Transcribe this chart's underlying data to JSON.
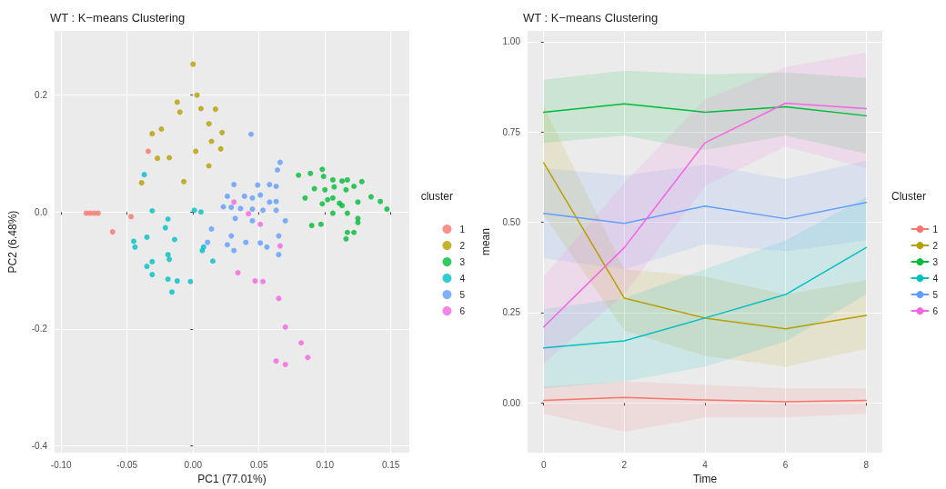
{
  "chart_data": [
    {
      "type": "scatter",
      "title": "WT : K−means Clustering",
      "xlabel": "PC1 (77.01%)",
      "ylabel": "PC2 (6.48%)",
      "legend_title": "cluster",
      "legend": "right",
      "grid": true,
      "marker": "circle",
      "xlim": [
        -0.105,
        0.164
      ],
      "ylim": [
        -0.412,
        0.31
      ],
      "xticks": [
        {
          "value": -0.1,
          "label": "-0.10"
        },
        {
          "value": -0.05,
          "label": "-0.05"
        },
        {
          "value": 0,
          "label": "0.00"
        },
        {
          "value": 0.05,
          "label": "0.05"
        },
        {
          "value": 0.1,
          "label": "0.10"
        },
        {
          "value": 0.15,
          "label": "0.15"
        }
      ],
      "yticks": [
        -0.4,
        -0.2,
        {
          "value": 0,
          "label": "0.0"
        },
        0.2
      ],
      "series": [
        {
          "name": "1",
          "color": "#f8766d",
          "x": [
            -0.081,
            -0.078,
            -0.075,
            -0.072,
            -0.047,
            -0.061,
            -0.034
          ],
          "values": [
            -0.002,
            -0.002,
            -0.002,
            -0.002,
            -0.008,
            -0.034,
            0.104
          ]
        },
        {
          "name": "2",
          "color": "#b79f00",
          "x": [
            0.0,
            0.003,
            -0.012,
            -0.01,
            0.006,
            0.017,
            0.012,
            0.022,
            -0.024,
            -0.031,
            0.014,
            0.021,
            0.002,
            -0.027,
            -0.018,
            0.012,
            -0.007,
            -0.039
          ],
          "values": [
            0.253,
            0.2,
            0.188,
            0.171,
            0.177,
            0.176,
            0.151,
            0.136,
            0.142,
            0.134,
            0.121,
            0.108,
            0.104,
            0.092,
            0.093,
            0.079,
            0.052,
            0.05
          ]
        },
        {
          "name": "3",
          "color": "#00ba38",
          "x": [
            0.098,
            0.089,
            0.099,
            0.08,
            0.106,
            0.113,
            0.117,
            0.128,
            0.122,
            0.116,
            0.1,
            0.107,
            0.092,
            0.085,
            0.102,
            0.106,
            0.111,
            0.098,
            0.113,
            0.125,
            0.135,
            0.142,
            0.147,
            0.117,
            0.106,
            0.125,
            0.125,
            0.097,
            0.09,
            0.117,
            0.122,
            0.116
          ],
          "values": [
            0.073,
            0.066,
            0.061,
            0.063,
            0.055,
            0.053,
            0.055,
            0.052,
            0.044,
            0.038,
            0.038,
            0.043,
            0.04,
            0.024,
            0.021,
            0.024,
            0.015,
            0.014,
            0.011,
            0.017,
            0.026,
            0.018,
            0.005,
            -0.002,
            -0.002,
            -0.011,
            -0.018,
            -0.021,
            -0.023,
            -0.035,
            -0.035,
            -0.046
          ]
        },
        {
          "name": "4",
          "color": "#00bfc4",
          "x": [
            -0.037,
            -0.031,
            0.001,
            0.006,
            -0.019,
            -0.021,
            -0.035,
            -0.045,
            -0.044,
            -0.014,
            0.008,
            0.007,
            -0.019,
            -0.018,
            -0.031,
            -0.035,
            -0.031,
            -0.019,
            -0.012,
            -0.002,
            -0.016,
            0.015
          ],
          "values": [
            0.064,
            0.002,
            0.003,
            0.0,
            -0.012,
            -0.027,
            -0.043,
            -0.05,
            -0.06,
            -0.047,
            -0.06,
            -0.066,
            -0.073,
            -0.081,
            -0.085,
            -0.093,
            -0.107,
            -0.115,
            -0.118,
            -0.119,
            -0.137,
            -0.084
          ]
        },
        {
          "name": "5",
          "color": "#619cff",
          "x": [
            0.044,
            0.066,
            0.064,
            0.031,
            0.049,
            0.058,
            0.063,
            0.026,
            0.039,
            0.045,
            0.051,
            0.058,
            0.063,
            0.023,
            0.029,
            0.036,
            0.045,
            0.053,
            0.063,
            0.032,
            0.045,
            0.07,
            0.014,
            0.011,
            0.029,
            0.026,
            0.04,
            0.051,
            0.056,
            0.065,
            0.065,
            0.031
          ],
          "values": [
            0.133,
            0.085,
            0.072,
            0.047,
            0.046,
            0.047,
            0.044,
            0.027,
            0.027,
            0.024,
            0.029,
            0.017,
            0.018,
            0.009,
            0.008,
            0.006,
            0.005,
            0.003,
            0.003,
            -0.011,
            -0.015,
            -0.015,
            -0.029,
            -0.052,
            -0.041,
            -0.056,
            -0.052,
            -0.053,
            -0.06,
            -0.041,
            -0.073,
            -0.066
          ]
        },
        {
          "name": "6",
          "color": "#f564e3",
          "x": [
            0.031,
            0.042,
            0.051,
            0.066,
            0.034,
            0.047,
            0.053,
            0.065,
            0.07,
            0.082,
            0.087,
            0.063,
            0.07
          ],
          "values": [
            0.017,
            -0.003,
            -0.021,
            -0.058,
            -0.104,
            -0.118,
            -0.119,
            -0.148,
            -0.197,
            -0.224,
            -0.249,
            -0.255,
            -0.261
          ]
        }
      ]
    },
    {
      "type": "line",
      "title": "WT : K−means Clustering",
      "xlabel": "Time",
      "ylabel": "mean",
      "legend_title": "Cluster",
      "legend": "right",
      "grid": true,
      "marker": "none",
      "line_style": "solid",
      "x": [
        0,
        2,
        4,
        6,
        8
      ],
      "xlim": [
        -0.4,
        8.4
      ],
      "ylim": [
        -0.138,
        1.03
      ],
      "xticks": [
        0,
        2,
        4,
        6,
        8
      ],
      "yticks": [
        {
          "value": 0,
          "label": "0.00"
        },
        {
          "value": 0.25,
          "label": "0.25"
        },
        {
          "value": 0.5,
          "label": "0.50"
        },
        {
          "value": 0.75,
          "label": "0.75"
        },
        {
          "value": 1,
          "label": "1.00"
        }
      ],
      "series": [
        {
          "name": "1",
          "color": "#f8766d",
          "values": [
            0.007,
            0.015,
            0.008,
            0.003,
            0.007
          ],
          "lower": [
            -0.03,
            -0.08,
            -0.04,
            -0.04,
            -0.03
          ],
          "upper": [
            0.045,
            0.06,
            0.05,
            0.04,
            0.04
          ]
        },
        {
          "name": "2",
          "color": "#b79f00",
          "values": [
            0.665,
            0.29,
            0.235,
            0.205,
            0.242
          ],
          "lower": [
            0.52,
            0.2,
            0.13,
            0.1,
            0.15
          ],
          "upper": [
            0.82,
            0.37,
            0.35,
            0.3,
            0.34
          ]
        },
        {
          "name": "3",
          "color": "#00ba38",
          "values": [
            0.805,
            0.828,
            0.805,
            0.82,
            0.795
          ],
          "lower": [
            0.72,
            0.74,
            0.7,
            0.74,
            0.69
          ],
          "upper": [
            0.895,
            0.92,
            0.91,
            0.915,
            0.9
          ]
        },
        {
          "name": "4",
          "color": "#00bfc4",
          "values": [
            0.152,
            0.172,
            0.235,
            0.3,
            0.43
          ],
          "lower": [
            0.04,
            0.06,
            0.1,
            0.17,
            0.3
          ],
          "upper": [
            0.26,
            0.29,
            0.37,
            0.45,
            0.57
          ]
        },
        {
          "name": "5",
          "color": "#619cff",
          "values": [
            0.525,
            0.497,
            0.545,
            0.51,
            0.555
          ],
          "lower": [
            0.4,
            0.37,
            0.44,
            0.42,
            0.45
          ],
          "upper": [
            0.65,
            0.63,
            0.66,
            0.62,
            0.67
          ]
        },
        {
          "name": "6",
          "color": "#f564e3",
          "values": [
            0.21,
            0.43,
            0.72,
            0.83,
            0.815
          ],
          "lower": [
            0.11,
            0.3,
            0.6,
            0.71,
            0.65
          ],
          "upper": [
            0.35,
            0.61,
            0.84,
            0.93,
            0.97
          ]
        }
      ]
    }
  ]
}
